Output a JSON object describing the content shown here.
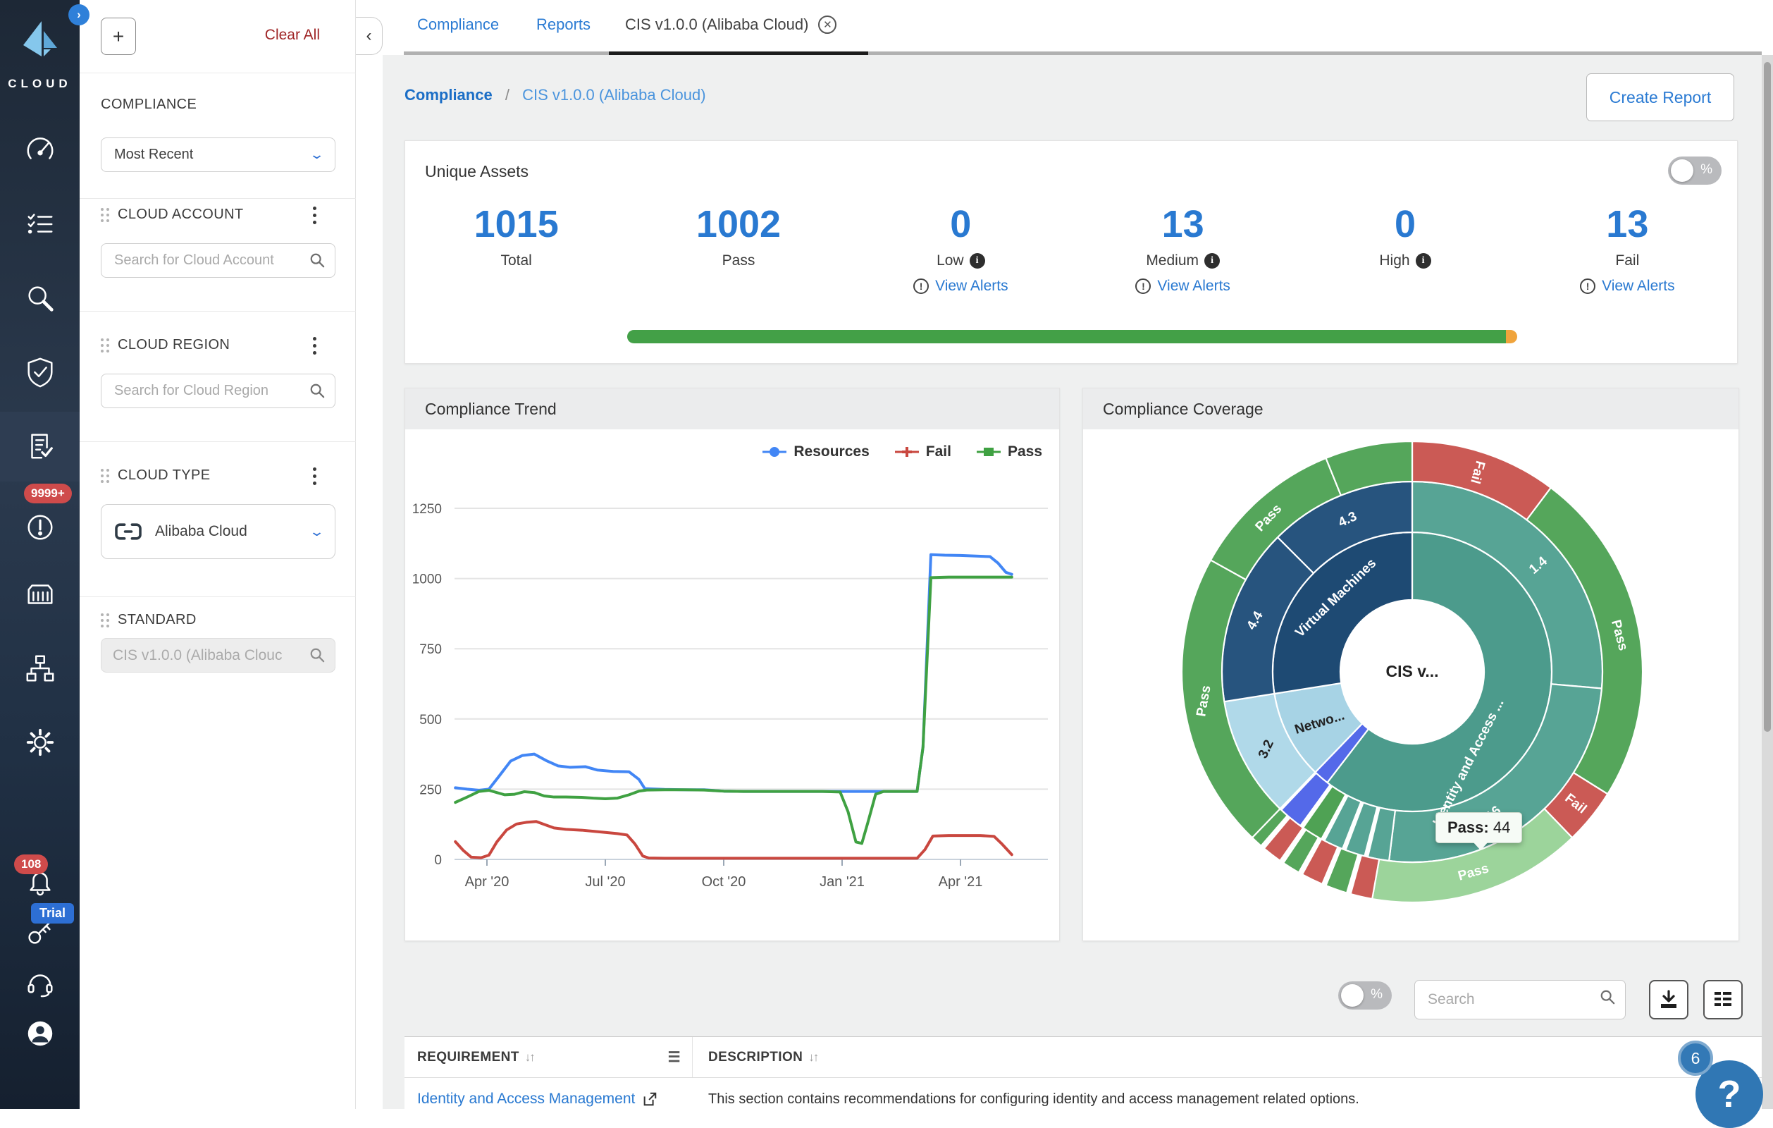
{
  "app": {
    "logo_text": "CLOUD"
  },
  "sidebar": {
    "badges": {
      "alerts_count": "9999+",
      "notifications_count": "108",
      "trial_label": "Trial"
    }
  },
  "filter_panel": {
    "add_button": "+",
    "clear_all": "Clear All",
    "group_label": "COMPLIANCE",
    "sort_dropdown": {
      "value": "Most Recent"
    },
    "cloud_account": {
      "title": "CLOUD ACCOUNT",
      "placeholder": "Search for Cloud Account"
    },
    "cloud_region": {
      "title": "CLOUD REGION",
      "placeholder": "Search for Cloud Region"
    },
    "cloud_type": {
      "title": "CLOUD TYPE",
      "value": "Alibaba Cloud"
    },
    "standard": {
      "title": "STANDARD",
      "value": "CIS v1.0.0 (Alibaba Clouc"
    }
  },
  "tabs": [
    {
      "label": "Compliance"
    },
    {
      "label": "Reports"
    },
    {
      "label": "CIS v1.0.0 (Alibaba Cloud)"
    }
  ],
  "breadcrumb": {
    "root": "Compliance",
    "separator": "/",
    "current": "CIS v1.0.0 (Alibaba Cloud)"
  },
  "actions": {
    "create_report": "Create Report"
  },
  "unique_assets": {
    "title": "Unique Assets",
    "percent_toggle_label": "%",
    "stats": [
      {
        "value": "1015",
        "label": "Total"
      },
      {
        "value": "1002",
        "label": "Pass"
      },
      {
        "value": "0",
        "label": "Low",
        "info": "i",
        "view_alerts": "View Alerts"
      },
      {
        "value": "13",
        "label": "Medium",
        "info": "i",
        "view_alerts": "View Alerts"
      },
      {
        "value": "0",
        "label": "High",
        "info": "i"
      },
      {
        "value": "13",
        "label": "Fail",
        "view_alerts": "View Alerts"
      }
    ],
    "progress": {
      "pass_pct": 98.7,
      "fail_pct": 1.3,
      "pass_color": "#43a047",
      "fail_color": "#f0a43c"
    }
  },
  "chart_data": [
    {
      "type": "line",
      "title": "Compliance Trend",
      "xlabel": "",
      "ylabel": "",
      "ylim": [
        0,
        1250
      ],
      "yticks": [
        0,
        250,
        500,
        750,
        1000,
        1250
      ],
      "x_ticks": [
        {
          "m": 1,
          "label": "Apr '20"
        },
        {
          "m": 4,
          "label": "Jul '20"
        },
        {
          "m": 7,
          "label": "Oct '20"
        },
        {
          "m": 10,
          "label": "Jan '21"
        },
        {
          "m": 13,
          "label": "Apr '21"
        }
      ],
      "x_domain_months": [
        0,
        15
      ],
      "grid": true,
      "legend_position": "top-right",
      "series": [
        {
          "name": "Resources",
          "color": "#4286f5",
          "points": [
            [
              0.2,
              255
            ],
            [
              0.5,
              250
            ],
            [
              0.8,
              246
            ],
            [
              1.05,
              250
            ],
            [
              1.3,
              295
            ],
            [
              1.6,
              350
            ],
            [
              1.9,
              370
            ],
            [
              2.2,
              375
            ],
            [
              2.5,
              352
            ],
            [
              2.8,
              333
            ],
            [
              3.1,
              328
            ],
            [
              3.5,
              330
            ],
            [
              3.8,
              318
            ],
            [
              4.2,
              313
            ],
            [
              4.6,
              312
            ],
            [
              4.85,
              285
            ],
            [
              5.0,
              252
            ],
            [
              5.5,
              249
            ],
            [
              6.0,
              248
            ],
            [
              6.5,
              248
            ],
            [
              7.0,
              243
            ],
            [
              7.5,
              242
            ],
            [
              8.0,
              242
            ],
            [
              8.5,
              242
            ],
            [
              9.0,
              242
            ],
            [
              9.5,
              242
            ],
            [
              10.0,
              242
            ],
            [
              10.5,
              242
            ],
            [
              11.0,
              242
            ],
            [
              11.5,
              242
            ],
            [
              11.9,
              242
            ],
            [
              12.05,
              400
            ],
            [
              12.25,
              1085
            ],
            [
              12.6,
              1083
            ],
            [
              13.0,
              1082
            ],
            [
              13.4,
              1080
            ],
            [
              13.75,
              1078
            ],
            [
              13.95,
              1055
            ],
            [
              14.15,
              1022
            ],
            [
              14.3,
              1015
            ]
          ]
        },
        {
          "name": "Fail",
          "color": "#c9473f",
          "points": [
            [
              0.2,
              63
            ],
            [
              0.4,
              32
            ],
            [
              0.6,
              8
            ],
            [
              0.85,
              6
            ],
            [
              1.05,
              15
            ],
            [
              1.25,
              62
            ],
            [
              1.5,
              105
            ],
            [
              1.75,
              126
            ],
            [
              2.0,
              132
            ],
            [
              2.25,
              135
            ],
            [
              2.5,
              122
            ],
            [
              2.7,
              112
            ],
            [
              3.0,
              107
            ],
            [
              3.4,
              104
            ],
            [
              3.7,
              100
            ],
            [
              4.0,
              96
            ],
            [
              4.3,
              92
            ],
            [
              4.55,
              87
            ],
            [
              4.75,
              55
            ],
            [
              4.95,
              12
            ],
            [
              5.1,
              5
            ],
            [
              5.5,
              4
            ],
            [
              6.0,
              4
            ],
            [
              6.5,
              4
            ],
            [
              7.0,
              4
            ],
            [
              7.5,
              4
            ],
            [
              8.0,
              4
            ],
            [
              8.5,
              4
            ],
            [
              9.0,
              4
            ],
            [
              9.5,
              4
            ],
            [
              10.0,
              4
            ],
            [
              10.5,
              4
            ],
            [
              11.0,
              4
            ],
            [
              11.5,
              4
            ],
            [
              11.9,
              4
            ],
            [
              12.1,
              35
            ],
            [
              12.3,
              83
            ],
            [
              12.7,
              85
            ],
            [
              13.1,
              85
            ],
            [
              13.5,
              85
            ],
            [
              13.85,
              82
            ],
            [
              14.05,
              55
            ],
            [
              14.3,
              17
            ]
          ]
        },
        {
          "name": "Pass",
          "color": "#3fa142",
          "points": [
            [
              0.2,
              203
            ],
            [
              0.5,
              222
            ],
            [
              0.8,
              242
            ],
            [
              1.05,
              246
            ],
            [
              1.25,
              238
            ],
            [
              1.45,
              230
            ],
            [
              1.7,
              232
            ],
            [
              1.95,
              241
            ],
            [
              2.2,
              238
            ],
            [
              2.45,
              226
            ],
            [
              2.7,
              222
            ],
            [
              3.0,
              222
            ],
            [
              3.4,
              221
            ],
            [
              3.7,
              218
            ],
            [
              4.0,
              216
            ],
            [
              4.3,
              218
            ],
            [
              4.6,
              230
            ],
            [
              4.85,
              243
            ],
            [
              5.05,
              247
            ],
            [
              5.5,
              248
            ],
            [
              6.0,
              248
            ],
            [
              6.5,
              247
            ],
            [
              7.0,
              243
            ],
            [
              7.5,
              242
            ],
            [
              8.0,
              242
            ],
            [
              8.5,
              242
            ],
            [
              9.0,
              242
            ],
            [
              9.5,
              242
            ],
            [
              9.95,
              240
            ],
            [
              10.15,
              170
            ],
            [
              10.35,
              62
            ],
            [
              10.5,
              57
            ],
            [
              10.65,
              130
            ],
            [
              10.85,
              232
            ],
            [
              11.05,
              242
            ],
            [
              11.5,
              242
            ],
            [
              11.9,
              242
            ],
            [
              12.05,
              400
            ],
            [
              12.25,
              1003
            ],
            [
              12.7,
              1005
            ],
            [
              13.2,
              1005
            ],
            [
              13.7,
              1005
            ],
            [
              14.3,
              1005
            ]
          ]
        }
      ]
    },
    {
      "type": "sunburst",
      "title": "Compliance Coverage",
      "center_label": "CIS v...",
      "tooltip": {
        "label": "Pass:",
        "value": "44"
      },
      "rings": [
        {
          "name": "inner",
          "r0": 102,
          "r1": 198,
          "segments": [
            {
              "label": "Identity and Access ...",
              "a0": 0,
              "a1": 217.5,
              "color": "#4C9B8C",
              "label_angle": 148,
              "label_r": 152,
              "label_rot": -63,
              "label_color": "#ffffff",
              "font": 19
            },
            {
              "a0": 217.5,
              "a1": 224,
              "color": "#5469E9"
            },
            {
              "label": "Netwo...",
              "a0": 224,
              "a1": 261,
              "color": "#A7D3E5",
              "label_angle": 241,
              "label_r": 150,
              "label_rot": -17,
              "label_color": "#222222",
              "font": 19
            },
            {
              "label": "Virtual Machines",
              "a0": 261,
              "a1": 360,
              "color": "#1E4A73",
              "label_angle": 314,
              "label_r": 150,
              "label_rot": -44,
              "label_color": "#ffffff",
              "font": 19
            }
          ]
        },
        {
          "name": "middle",
          "r0": 198,
          "r1": 270,
          "segments": [
            {
              "label": "1.4",
              "a0": 0,
              "a1": 95,
              "color": "#57A495",
              "label_angle": 50,
              "label_r": 234,
              "label_rot": -40,
              "label_color": "#ffffff",
              "font": 19
            },
            {
              "label": "1.16",
              "a0": 95,
              "a1": 187,
              "color": "#57A495",
              "label_angle": 152,
              "label_r": 234,
              "label_rot": -40,
              "label_color": "#ffffff",
              "font": 19
            },
            {
              "a0": 187,
              "a1": 193.5,
              "color": "#57A495"
            },
            {
              "a0": 194.5,
              "a1": 200.5,
              "color": "#57A495"
            },
            {
              "a0": 201.5,
              "a1": 207.5,
              "color": "#57A495"
            },
            {
              "a0": 208.5,
              "a1": 215,
              "color": "#4FA254"
            },
            {
              "a0": 216,
              "a1": 223.5,
              "color": "#5469E9"
            },
            {
              "label": "3.2",
              "a0": 224,
              "a1": 261,
              "color": "#B0D9E9",
              "label_angle": 242,
              "label_r": 234,
              "label_rot": -65,
              "label_color": "#222222",
              "font": 19
            },
            {
              "label": "4.4",
              "a0": 261,
              "a1": 315,
              "color": "#27547E",
              "label_angle": 288,
              "label_r": 234,
              "label_rot": -60,
              "label_color": "#ffffff",
              "font": 19
            },
            {
              "label": "4.3",
              "a0": 315,
              "a1": 360,
              "color": "#27547E",
              "label_angle": 337,
              "label_r": 234,
              "label_rot": -25,
              "label_color": "#ffffff",
              "font": 19
            }
          ]
        },
        {
          "name": "outer",
          "r0": 270,
          "r1": 327,
          "segments": [
            {
              "label": "Fail",
              "a0": 0,
              "a1": 37,
              "color": "#CB5A55",
              "label_angle": 18,
              "label_r": 298,
              "label_rot": 105,
              "label_color": "#ffffff",
              "font": 19
            },
            {
              "label": "Pass",
              "a0": 37,
              "a1": 122,
              "color": "#55A65B",
              "label_angle": 80,
              "label_r": 298,
              "label_rot": 75,
              "label_color": "#ffffff",
              "font": 19
            },
            {
              "label": "Fail",
              "a0": 122,
              "a1": 136,
              "color": "#CB5A55",
              "label_angle": 129,
              "label_r": 298,
              "label_rot": 38,
              "label_color": "#ffffff",
              "font": 19
            },
            {
              "label": "Pass",
              "a0": 136,
              "a1": 190,
              "color": "#9CD49B",
              "label_angle": 163,
              "label_r": 298,
              "label_rot": -16,
              "label_color": "#ffffff",
              "font": 19
            },
            {
              "a0": 190,
              "a1": 195.5,
              "color": "#CB5A55"
            },
            {
              "a0": 196.5,
              "a1": 202,
              "color": "#55A65B"
            },
            {
              "a0": 203,
              "a1": 208.5,
              "color": "#CB5A55"
            },
            {
              "a0": 209.5,
              "a1": 214,
              "color": "#55A65B"
            },
            {
              "a0": 215,
              "a1": 220,
              "color": "#CB5A55"
            },
            {
              "a0": 221,
              "a1": 224,
              "color": "#55A65B"
            },
            {
              "label": "Pass",
              "a0": 224,
              "a1": 299,
              "color": "#55A65B",
              "label_angle": 262,
              "label_r": 298,
              "label_rot": -80,
              "label_color": "#ffffff",
              "font": 19
            },
            {
              "label": "Pass",
              "a0": 299,
              "a1": 338,
              "color": "#55A65B",
              "label_angle": 317,
              "label_r": 298,
              "label_rot": -47,
              "label_color": "#ffffff",
              "font": 19
            },
            {
              "a0": 338,
              "a1": 360,
              "color": "#55A65B"
            }
          ]
        }
      ]
    }
  ],
  "list_controls": {
    "percent_toggle_label": "%",
    "search_placeholder": "Search"
  },
  "table": {
    "columns": [
      {
        "label": "REQUIREMENT"
      },
      {
        "label": "DESCRIPTION"
      }
    ],
    "rows": [
      {
        "requirement": "Identity and Access Management",
        "description": "This section contains recommendations for configuring identity and access management related options."
      }
    ]
  },
  "help_fab": {
    "count": "6",
    "icon": "?"
  },
  "colors": {
    "accent_blue": "#2979d1",
    "sidebar_navy": "#243246",
    "badge_red": "#cf4b4b",
    "trial_blue": "#2d6fd4",
    "pass_green": "#55A65B",
    "fail_red": "#CB5A55",
    "teal": "#4C9B8C",
    "navy": "#1E4A73",
    "light_blue": "#A7D3E5",
    "light_green": "#9CD49B",
    "bar_orange": "#f0a43c"
  }
}
